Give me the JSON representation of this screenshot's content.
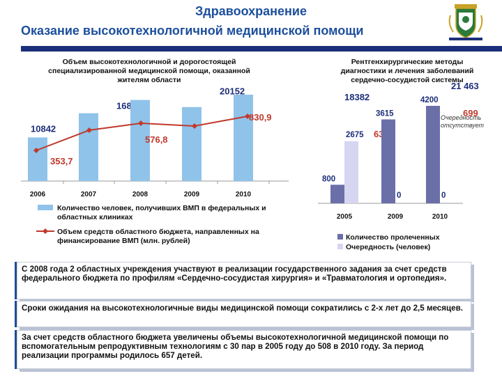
{
  "header": {
    "title": "Здравоохранение",
    "subtitle": "Оказание высокотехнологичной медицинской помощи"
  },
  "chart_data": [
    {
      "type": "bar",
      "title": "Объем высокотехнологичной и дорогостоящей специализированной медицинской помощи, оказанной жителям области",
      "categories": [
        "2006",
        "2007",
        "2008",
        "2009",
        "2010"
      ],
      "series": [
        {
          "name": "Количество человек, получивших ВМП в федеральных и областных клиниках",
          "type": "bar",
          "color": "#8fc3ea",
          "values": [
            10842,
            16856,
            20152,
            18382,
            21463
          ],
          "labels": [
            "10842",
            "16856",
            "20152",
            "18382",
            "21 463"
          ]
        },
        {
          "name": "Объем средств областного бюджета, направленных на финансирование ВМП (млн. рублей)",
          "type": "line",
          "color": "#c0392b",
          "values": [
            353.7,
            576.8,
            830.9,
            636,
            699
          ],
          "labels": [
            "353,7",
            "576,8",
            "830,9",
            "636",
            "699"
          ]
        }
      ],
      "grid": false,
      "legend": "bottom"
    },
    {
      "type": "bar",
      "title": "Рентгенхирургические методы диагностики и лечения заболеваний сердечно-сосудистой системы",
      "categories": [
        "2005",
        "2009",
        "2010"
      ],
      "series": [
        {
          "name": "Количество пролеченных",
          "color": "#6b6fa8",
          "values": [
            800,
            3615,
            4200
          ],
          "labels": [
            "800",
            "3615",
            "4200"
          ]
        },
        {
          "name": "Очередность (человек)",
          "color": "#d6d6f2",
          "values": [
            2675,
            0,
            0
          ],
          "labels": [
            "2675",
            "0",
            "0"
          ]
        }
      ],
      "annotation": "Очередность отсутствует",
      "grid": false,
      "legend": "bottom"
    }
  ],
  "notes": [
    "С 2008 года 2 областных учреждения участвуют в реализации государственного задания за счет средств федерального бюджета по профилям «Сердечно-сосудистая хирургия» и «Травматология и ортопедия».",
    "Сроки ожидания на высокотехнологичные виды медицинской помощи сократились с 2-х лет до 2,5 месяцев.",
    "За счет средств областного бюджета увеличены объемы высокотехнологичной медицинской помощи по вспомогательным репродуктивным технологиям с 30 пар в 2005 году до 508 в 2010 году. За период реализации программы родилось 657 детей."
  ]
}
